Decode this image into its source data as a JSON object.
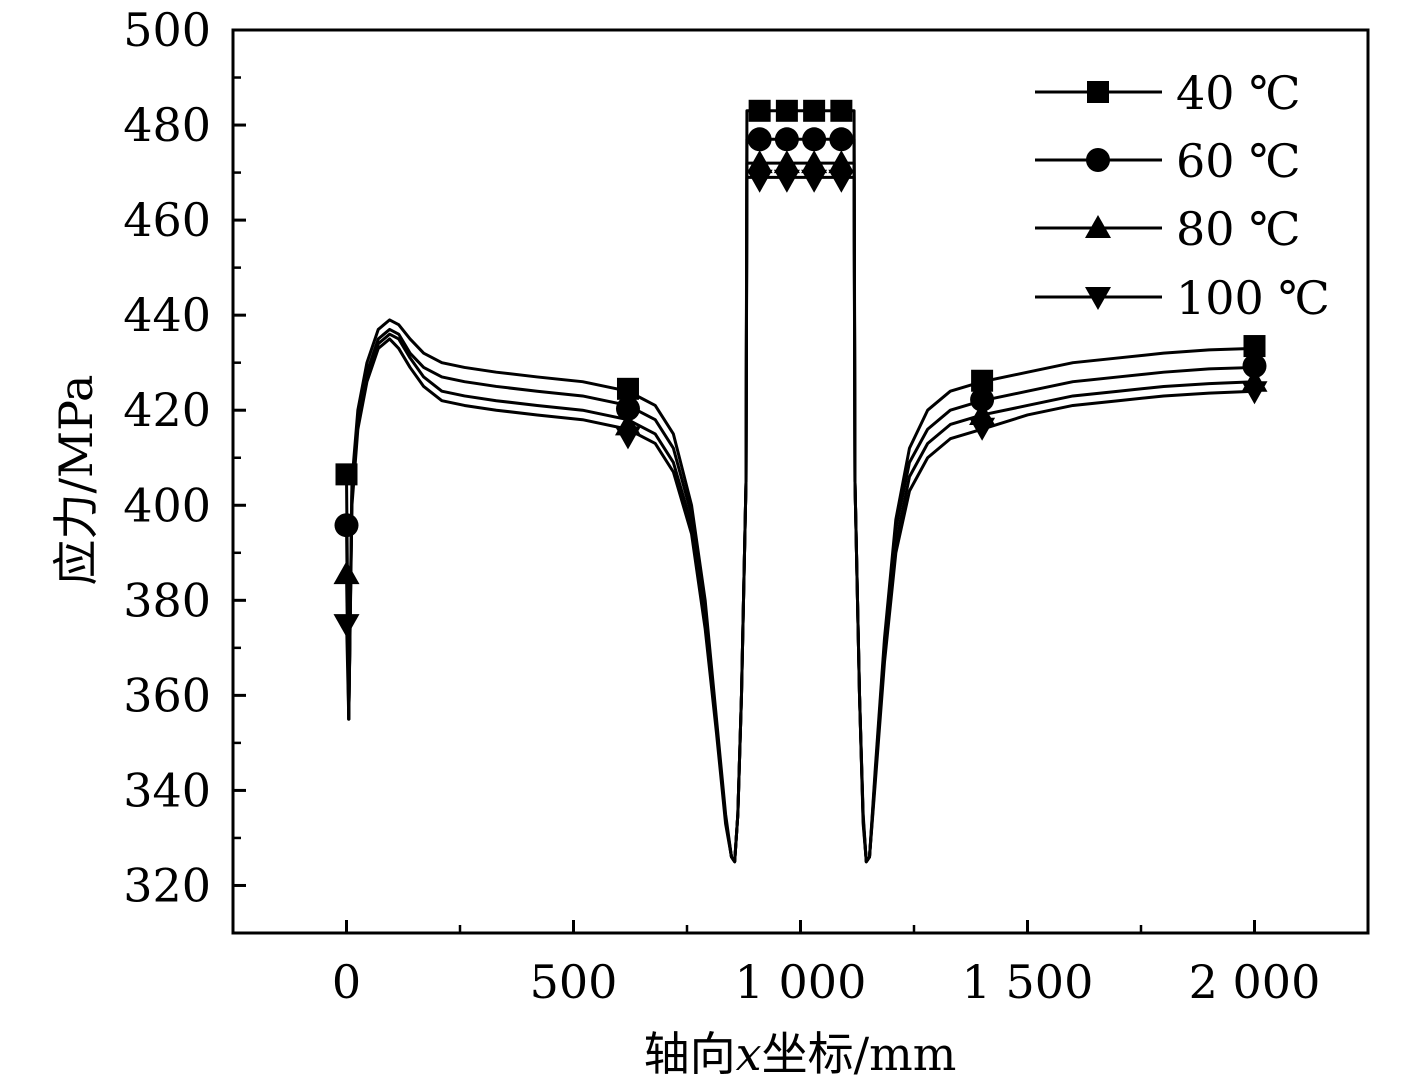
{
  "chart_data": {
    "type": "line",
    "xlabel": "轴向x坐标/mm",
    "xlabel_parts": {
      "pre": "轴向",
      "var": "x",
      "post": "坐标/mm"
    },
    "ylabel": "应力/MPa",
    "xlim": [
      -250,
      2250
    ],
    "ylim": [
      310,
      500
    ],
    "x_ticks": [
      0,
      500,
      1000,
      1500,
      2000
    ],
    "x_tick_labels": [
      "0",
      "500",
      "1 000",
      "1 500",
      "2 000"
    ],
    "x_minor_step": 250,
    "y_ticks": [
      320,
      340,
      360,
      380,
      400,
      420,
      440,
      460,
      480,
      500
    ],
    "y_tick_labels": [
      "320",
      "340",
      "360",
      "380",
      "400",
      "420",
      "440",
      "460",
      "480",
      "500"
    ],
    "y_minor_step": 10,
    "legend_position": "top-right",
    "color": "#000000",
    "series": [
      {
        "name": "40 ℃",
        "marker": "square",
        "offset": 0,
        "x": [
          0,
          5,
          12,
          25,
          45,
          70,
          95,
          115,
          140,
          170,
          210,
          260,
          330,
          420,
          520,
          620,
          680,
          720,
          760,
          790,
          815,
          835,
          848,
          855,
          862,
          870,
          880,
          882,
          1118,
          1120,
          1130,
          1138,
          1145,
          1152,
          1165,
          1185,
          1210,
          1240,
          1280,
          1330,
          1400,
          1500,
          1600,
          1700,
          1800,
          1900,
          2000
        ],
        "y": [
          406,
          355,
          405,
          420,
          430,
          437,
          439,
          438,
          435,
          432,
          430,
          429,
          428,
          427,
          426,
          424,
          421,
          415,
          400,
          380,
          355,
          335,
          326,
          325,
          335,
          360,
          405,
          483,
          483,
          405,
          360,
          335,
          325,
          326,
          345,
          372,
          397,
          412,
          420,
          424,
          426,
          428,
          430,
          431,
          432,
          432.7,
          433
        ],
        "marker_x": [
          0,
          620,
          910,
          970,
          1030,
          1090,
          1400,
          2000
        ],
        "marker_y": [
          406.5,
          424.5,
          483,
          483,
          483,
          483,
          426.2,
          433.5
        ]
      },
      {
        "name": "60 ℃",
        "marker": "circle",
        "offset": -2,
        "x": [
          0,
          5,
          12,
          25,
          45,
          70,
          95,
          115,
          140,
          170,
          210,
          260,
          330,
          420,
          520,
          620,
          680,
          720,
          760,
          790,
          815,
          835,
          848,
          855,
          862,
          870,
          880,
          882,
          1118,
          1120,
          1130,
          1138,
          1145,
          1152,
          1165,
          1185,
          1210,
          1240,
          1280,
          1330,
          1400,
          1500,
          1600,
          1700,
          1800,
          1900,
          2000
        ],
        "y": [
          396,
          355,
          403,
          418,
          428,
          435,
          437,
          436,
          432,
          429,
          427,
          426,
          425,
          424,
          423,
          421,
          418,
          412,
          398,
          378,
          354,
          334,
          326,
          325,
          335,
          360,
          405,
          477,
          477,
          405,
          360,
          334,
          325,
          326,
          344,
          371,
          395,
          409,
          416,
          420,
          422,
          424,
          426,
          427,
          428,
          428.7,
          429
        ],
        "marker_x": [
          0,
          620,
          910,
          970,
          1030,
          1090,
          1400,
          2000
        ],
        "marker_y": [
          395.8,
          420.3,
          477,
          477,
          477,
          477,
          422.2,
          429.3
        ]
      },
      {
        "name": "80 ℃",
        "marker": "triangle-up",
        "offset": -4,
        "x": [
          0,
          5,
          12,
          25,
          45,
          70,
          95,
          115,
          140,
          170,
          210,
          260,
          330,
          420,
          520,
          620,
          680,
          720,
          760,
          790,
          815,
          835,
          848,
          855,
          862,
          870,
          880,
          882,
          1118,
          1120,
          1130,
          1138,
          1145,
          1152,
          1165,
          1185,
          1210,
          1240,
          1280,
          1330,
          1400,
          1500,
          1600,
          1700,
          1800,
          1900,
          2000
        ],
        "y": [
          386,
          355,
          402,
          417,
          427,
          434,
          436,
          435,
          431,
          427,
          424,
          423,
          422,
          421,
          420,
          418,
          415,
          409,
          396,
          376,
          353,
          334,
          326,
          325,
          335,
          360,
          405,
          472,
          472,
          405,
          360,
          334,
          325,
          326,
          343,
          369,
          392,
          406,
          413,
          417,
          419,
          421,
          423,
          424,
          425,
          425.6,
          426
        ],
        "marker_x": [
          0,
          620,
          910,
          970,
          1030,
          1090,
          1400,
          2000
        ],
        "marker_y": [
          385.5,
          416.8,
          472,
          472,
          472,
          472,
          419.0,
          426.0
        ]
      },
      {
        "name": "100 ℃",
        "marker": "triangle-down",
        "offset": -6,
        "x": [
          0,
          5,
          12,
          25,
          45,
          70,
          95,
          115,
          140,
          170,
          210,
          260,
          330,
          420,
          520,
          620,
          680,
          720,
          760,
          790,
          815,
          835,
          848,
          855,
          862,
          870,
          880,
          882,
          1118,
          1120,
          1130,
          1138,
          1145,
          1152,
          1165,
          1185,
          1210,
          1240,
          1280,
          1330,
          1400,
          1500,
          1600,
          1700,
          1800,
          1900,
          2000
        ],
        "y": [
          376,
          355,
          400,
          416,
          426,
          433,
          435,
          433,
          429,
          425,
          422,
          421,
          420,
          419,
          418,
          416,
          413,
          407,
          394,
          374,
          352,
          333,
          326,
          325,
          335,
          360,
          405,
          469,
          469,
          405,
          360,
          333,
          325,
          326,
          342,
          367,
          390,
          403,
          410,
          414,
          416,
          419,
          421,
          422,
          423,
          423.6,
          424
        ],
        "marker_x": [
          0,
          620,
          910,
          970,
          1030,
          1090,
          1400,
          2000
        ],
        "marker_y": [
          375.0,
          414.5,
          468.5,
          468.5,
          468.5,
          468.5,
          416.3,
          424.0
        ]
      }
    ]
  }
}
